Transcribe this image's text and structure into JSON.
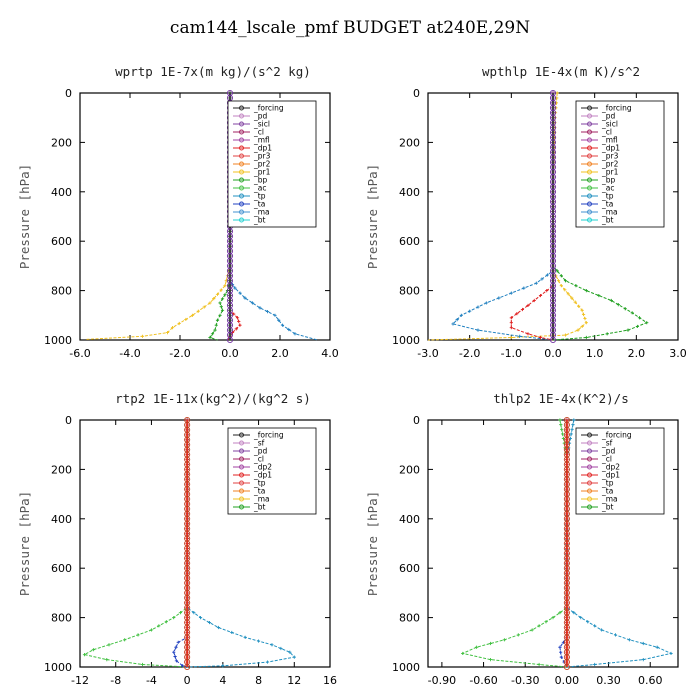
{
  "title": "cam144_lscale_pmf  BUDGET at240E,29N",
  "chart_data": [
    {
      "type": "line",
      "title": "wprtp  1E-7x(m kg)/(s^2 kg)",
      "ylabel": "Pressure [hPa]",
      "xlim": [
        -6.0,
        4.0
      ],
      "ylim": [
        1000,
        0
      ],
      "xticks": [
        "-6.0",
        "-4.0",
        "-2.0",
        "0.0",
        "2.0",
        "4.0"
      ],
      "yticks": [
        "0",
        "200",
        "400",
        "600",
        "800",
        "1000"
      ],
      "legend_position": "top-right",
      "legend": [
        "_forcing",
        "_pd",
        "_sicl",
        "_cl",
        "_mfl",
        "_dp1",
        "_pr3",
        "_pr2",
        "_pr1",
        "_bp",
        "_ac",
        "_tp",
        "_ta",
        "_ma",
        "_bt"
      ],
      "series": [
        {
          "name": "_pr1",
          "color": "#f0c020",
          "points": [
            [
              0,
              0
            ],
            [
              0,
              700
            ],
            [
              -0.2,
              780
            ],
            [
              -0.8,
              850
            ],
            [
              -1.5,
              900
            ],
            [
              -2.3,
              950
            ],
            [
              -2.5,
              970
            ],
            [
              -3.5,
              985
            ],
            [
              -5.8,
              998
            ]
          ]
        },
        {
          "name": "_bp",
          "color": "#20a020",
          "points": [
            [
              0,
              0
            ],
            [
              0,
              760
            ],
            [
              -0.1,
              800
            ],
            [
              -0.4,
              850
            ],
            [
              -0.3,
              880
            ],
            [
              -0.5,
              920
            ],
            [
              -0.6,
              960
            ],
            [
              -0.8,
              990
            ],
            [
              -0.5,
              1000
            ]
          ]
        },
        {
          "name": "_tp",
          "color": "#2080c0",
          "points": [
            [
              0,
              0
            ],
            [
              0,
              760
            ],
            [
              0.2,
              790
            ],
            [
              0.6,
              830
            ],
            [
              1.2,
              870
            ],
            [
              1.8,
              900
            ],
            [
              2.1,
              940
            ],
            [
              2.6,
              975
            ],
            [
              3.5,
              1000
            ]
          ]
        },
        {
          "name": "_dp1",
          "color": "#e02020",
          "points": [
            [
              0,
              0
            ],
            [
              0,
              880
            ],
            [
              0.3,
              910
            ],
            [
              0.4,
              940
            ],
            [
              0.1,
              970
            ],
            [
              -0.1,
              1000
            ]
          ]
        },
        {
          "name": "_bt",
          "color": "#20d0d0",
          "points": [
            [
              0,
              0
            ],
            [
              0,
              1000
            ]
          ]
        },
        {
          "name": "_forcing",
          "color": "#202020",
          "points": [
            [
              0,
              0
            ],
            [
              0,
              1000
            ]
          ]
        }
      ]
    },
    {
      "type": "line",
      "title": "wpthlp  1E-4x(m K)/s^2",
      "ylabel": "Pressure [hPa]",
      "xlim": [
        -3.0,
        3.0
      ],
      "ylim": [
        1000,
        0
      ],
      "xticks": [
        "-3.0",
        "-2.0",
        "-1.0",
        "0.0",
        "1.0",
        "2.0",
        "3.0"
      ],
      "yticks": [
        "0",
        "200",
        "400",
        "600",
        "800",
        "1000"
      ],
      "legend_position": "top-right",
      "legend": [
        "_forcing",
        "_pd",
        "_sicl",
        "_cl",
        "_mfl",
        "_dp1",
        "_pr3",
        "_pr2",
        "_pr1",
        "_bp",
        "_ac",
        "_tp",
        "_ta",
        "_ma",
        "_bt"
      ],
      "series": [
        {
          "name": "_pr1",
          "color": "#f0c020",
          "points": [
            [
              0.1,
              0
            ],
            [
              0.05,
              100
            ],
            [
              0,
              400
            ],
            [
              0,
              720
            ],
            [
              0.2,
              780
            ],
            [
              0.45,
              830
            ],
            [
              0.7,
              880
            ],
            [
              0.8,
              930
            ],
            [
              0.6,
              960
            ],
            [
              0.3,
              980
            ],
            [
              -1.0,
              990
            ],
            [
              -3.0,
              1000
            ]
          ]
        },
        {
          "name": "_bp",
          "color": "#20a020",
          "points": [
            [
              0,
              0
            ],
            [
              0,
              700
            ],
            [
              0.3,
              760
            ],
            [
              0.8,
              800
            ],
            [
              1.4,
              840
            ],
            [
              1.9,
              890
            ],
            [
              2.25,
              930
            ],
            [
              1.8,
              960
            ],
            [
              0.8,
              990
            ],
            [
              0,
              1000
            ]
          ]
        },
        {
          "name": "_tp",
          "color": "#2080c0",
          "points": [
            [
              0,
              0
            ],
            [
              0,
              720
            ],
            [
              -0.4,
              770
            ],
            [
              -1.0,
              810
            ],
            [
              -1.6,
              850
            ],
            [
              -2.2,
              900
            ],
            [
              -2.4,
              935
            ],
            [
              -1.8,
              960
            ],
            [
              -0.8,
              985
            ],
            [
              0,
              1000
            ]
          ]
        },
        {
          "name": "_dp1",
          "color": "#e02020",
          "points": [
            [
              0,
              0
            ],
            [
              0,
              780
            ],
            [
              -0.3,
              820
            ],
            [
              -0.6,
              860
            ],
            [
              -1.0,
              910
            ],
            [
              -1.0,
              950
            ],
            [
              -0.6,
              975
            ],
            [
              -0.3,
              990
            ],
            [
              0,
              1000
            ]
          ]
        },
        {
          "name": "_forcing",
          "color": "#202020",
          "points": [
            [
              0,
              0
            ],
            [
              0,
              1000
            ]
          ]
        },
        {
          "name": "_cl",
          "color": "#a040a0",
          "points": [
            [
              0,
              0
            ],
            [
              0,
              1000
            ]
          ]
        }
      ]
    },
    {
      "type": "line",
      "title": "rtp2  1E-11x(kg^2)/(kg^2 s)",
      "ylabel": "Pressure [hPa]",
      "xlim": [
        -12,
        16
      ],
      "ylim": [
        1000,
        0
      ],
      "xticks": [
        "-12",
        "-8",
        "-4",
        "0",
        "4",
        "8",
        "12",
        "16"
      ],
      "yticks": [
        "0",
        "200",
        "400",
        "600",
        "800",
        "1000"
      ],
      "legend_position": "top-right",
      "legend": [
        "_forcing",
        "_sf",
        "_pd",
        "_cl",
        "_dp2",
        "_dp1",
        "_tp",
        "_ta",
        "_ma",
        "_bt"
      ],
      "series": [
        {
          "name": "_dp1",
          "color": "#40c040",
          "points": [
            [
              0,
              0
            ],
            [
              0,
              760
            ],
            [
              -1.5,
              800
            ],
            [
              -4.0,
              850
            ],
            [
              -7.0,
              890
            ],
            [
              -10.5,
              930
            ],
            [
              -11.5,
              950
            ],
            [
              -9.0,
              970
            ],
            [
              -5.0,
              990
            ],
            [
              0,
              1000
            ]
          ]
        },
        {
          "name": "_tp",
          "color": "#2090c0",
          "points": [
            [
              0,
              0
            ],
            [
              0,
              760
            ],
            [
              1.5,
              800
            ],
            [
              3.5,
              840
            ],
            [
              6.5,
              880
            ],
            [
              9.5,
              910
            ],
            [
              11.5,
              940
            ],
            [
              12.0,
              960
            ],
            [
              9.0,
              980
            ],
            [
              4.0,
              995
            ],
            [
              0,
              1000
            ]
          ]
        },
        {
          "name": "_ta",
          "color": "#2040c0",
          "points": [
            [
              0,
              0
            ],
            [
              0,
              880
            ],
            [
              -1.0,
              900
            ],
            [
              -1.5,
              940
            ],
            [
              -1.2,
              975
            ],
            [
              -0.5,
              995
            ],
            [
              0,
              1000
            ]
          ]
        },
        {
          "name": "_forcing",
          "color": "#e02020",
          "points": [
            [
              0,
              0
            ],
            [
              0,
              1000
            ]
          ]
        }
      ]
    },
    {
      "type": "line",
      "title": "thlp2  1E-4x(K^2)/s",
      "ylabel": "Pressure [hPa]",
      "xlim": [
        -1.0,
        0.8
      ],
      "ylim": [
        1000,
        0
      ],
      "xticks": [
        "-0.90",
        "-0.60",
        "-0.30",
        "0.00",
        "0.30",
        "0.60"
      ],
      "yticks": [
        "0",
        "200",
        "400",
        "600",
        "800",
        "1000"
      ],
      "legend_position": "top-right",
      "legend": [
        "_forcing",
        "_sf",
        "_pd",
        "_cl",
        "_dp2",
        "_dp1",
        "_tp",
        "_ta",
        "_ma",
        "_bt"
      ],
      "series": [
        {
          "name": "_dp1",
          "color": "#40c040",
          "points": [
            [
              -0.05,
              0
            ],
            [
              0,
              150
            ],
            [
              0,
              760
            ],
            [
              -0.1,
              800
            ],
            [
              -0.25,
              850
            ],
            [
              -0.45,
              890
            ],
            [
              -0.65,
              920
            ],
            [
              -0.75,
              945
            ],
            [
              -0.55,
              970
            ],
            [
              -0.2,
              990
            ],
            [
              0,
              1000
            ]
          ]
        },
        {
          "name": "_tp",
          "color": "#2090c0",
          "points": [
            [
              0.05,
              0
            ],
            [
              0,
              150
            ],
            [
              0,
              760
            ],
            [
              0.1,
              800
            ],
            [
              0.25,
              850
            ],
            [
              0.45,
              890
            ],
            [
              0.65,
              920
            ],
            [
              0.75,
              945
            ],
            [
              0.55,
              970
            ],
            [
              0.2,
              990
            ],
            [
              0,
              1000
            ]
          ]
        },
        {
          "name": "_ta",
          "color": "#2040c0",
          "points": [
            [
              0,
              0
            ],
            [
              0,
              880
            ],
            [
              -0.05,
              920
            ],
            [
              -0.04,
              960
            ],
            [
              0,
              1000
            ]
          ]
        },
        {
          "name": "_forcing",
          "color": "#e02020",
          "points": [
            [
              0,
              0
            ],
            [
              0,
              1000
            ]
          ]
        }
      ]
    }
  ]
}
